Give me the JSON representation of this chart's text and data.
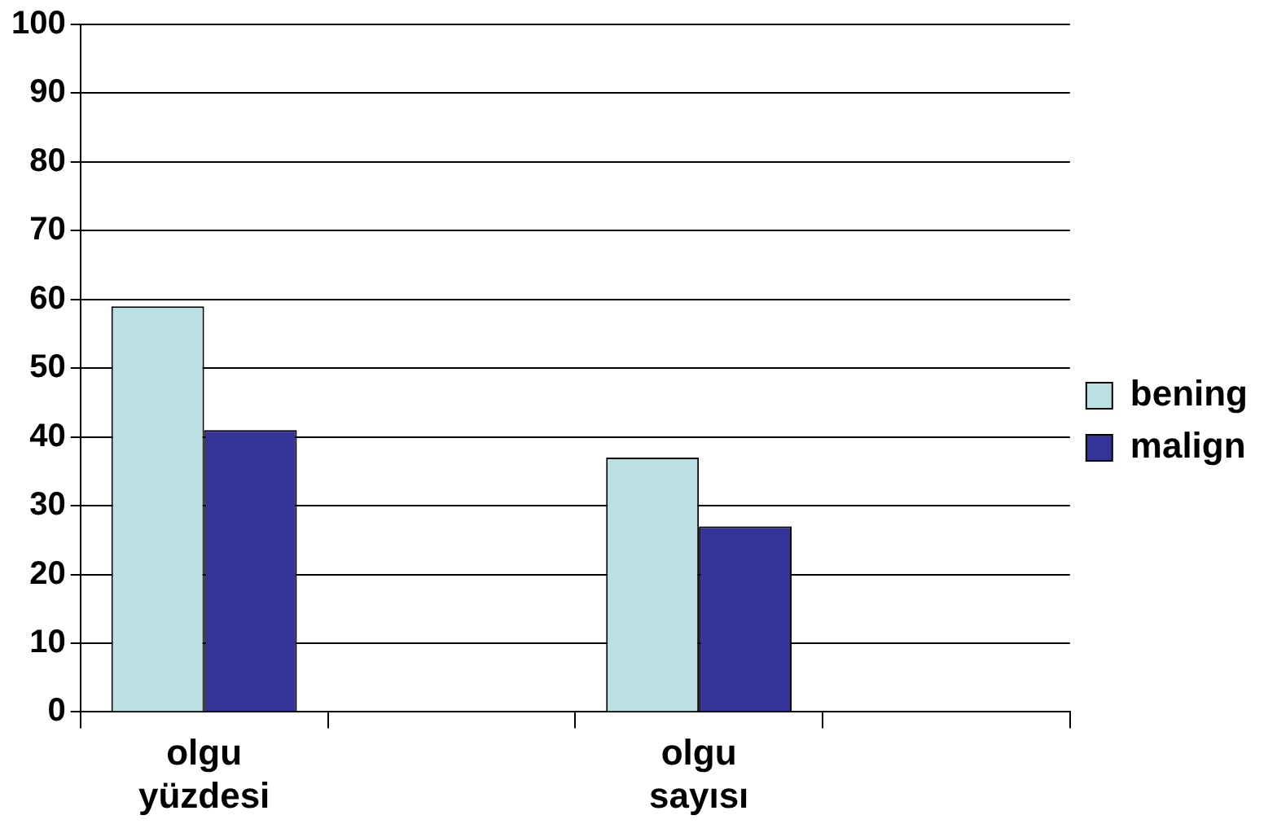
{
  "chart_data": {
    "type": "bar",
    "categories": [
      "olgu\nyüzdesi",
      null,
      "olgu\nsayısı",
      null
    ],
    "series": [
      {
        "name": "bening",
        "color": "#bbe0e3",
        "values": [
          59,
          null,
          37,
          null
        ]
      },
      {
        "name": "malign",
        "color": "#333399",
        "values": [
          41,
          null,
          27,
          null
        ]
      }
    ],
    "ylim": [
      0,
      100
    ],
    "yticks": [
      0,
      10,
      20,
      30,
      40,
      50,
      60,
      70,
      80,
      90,
      100
    ],
    "grid": "y",
    "legend": "right"
  }
}
